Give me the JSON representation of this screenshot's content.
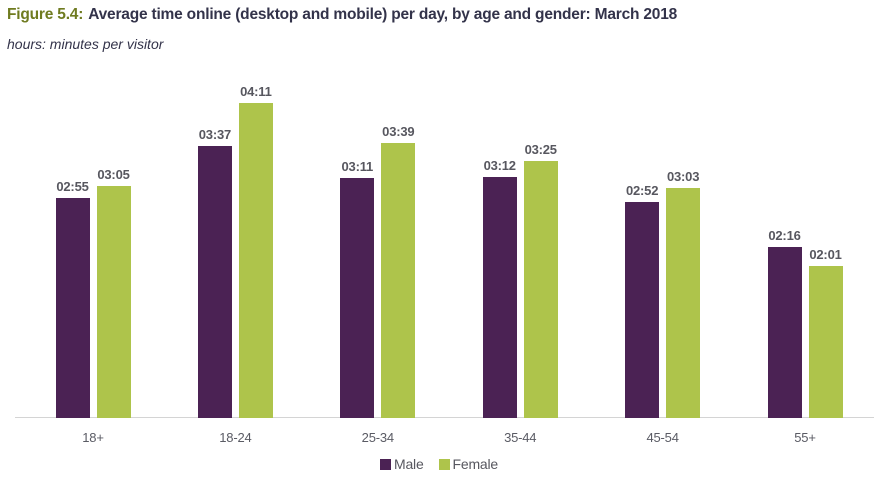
{
  "title": {
    "prefix": "Figure 5.4:",
    "text": "Average time online (desktop and mobile) per day, by age and gender: March 2018"
  },
  "subtitle": "hours: minutes per visitor",
  "colors": {
    "figure_label": "#6f7b20",
    "title_text": "#33334a",
    "male": "#4b2254",
    "female": "#aec44b",
    "value_label": "#57575f",
    "axis_line": "#d4d4d4",
    "tick_label": "#5a5b64"
  },
  "chart_data": {
    "type": "bar",
    "title": "Figure 5.4: Average time online (desktop and mobile) per day, by age and gender: March 2018",
    "subtitle": "hours: minutes per visitor",
    "categories": [
      "18+",
      "18-24",
      "25-34",
      "35-44",
      "45-54",
      "55+"
    ],
    "series": [
      {
        "name": "Male",
        "color": "#4b2254",
        "values": [
          "02:55",
          "03:37",
          "03:11",
          "03:12",
          "02:52",
          "02:16"
        ]
      },
      {
        "name": "Female",
        "color": "#aec44b",
        "values": [
          "03:05",
          "04:11",
          "03:39",
          "03:25",
          "03:03",
          "02:01"
        ]
      }
    ],
    "value_format": "hh:mm per visitor",
    "values_in_minutes": {
      "Male": [
        175,
        217,
        191,
        192,
        172,
        136
      ],
      "Female": [
        185,
        251,
        219,
        205,
        183,
        121
      ]
    },
    "ylabel": "",
    "xlabel": "",
    "ylim_minutes": [
      0,
      266
    ],
    "grid": false,
    "y_axis_visible": false,
    "data_labels": "above bars",
    "legend_position": "bottom-center"
  }
}
